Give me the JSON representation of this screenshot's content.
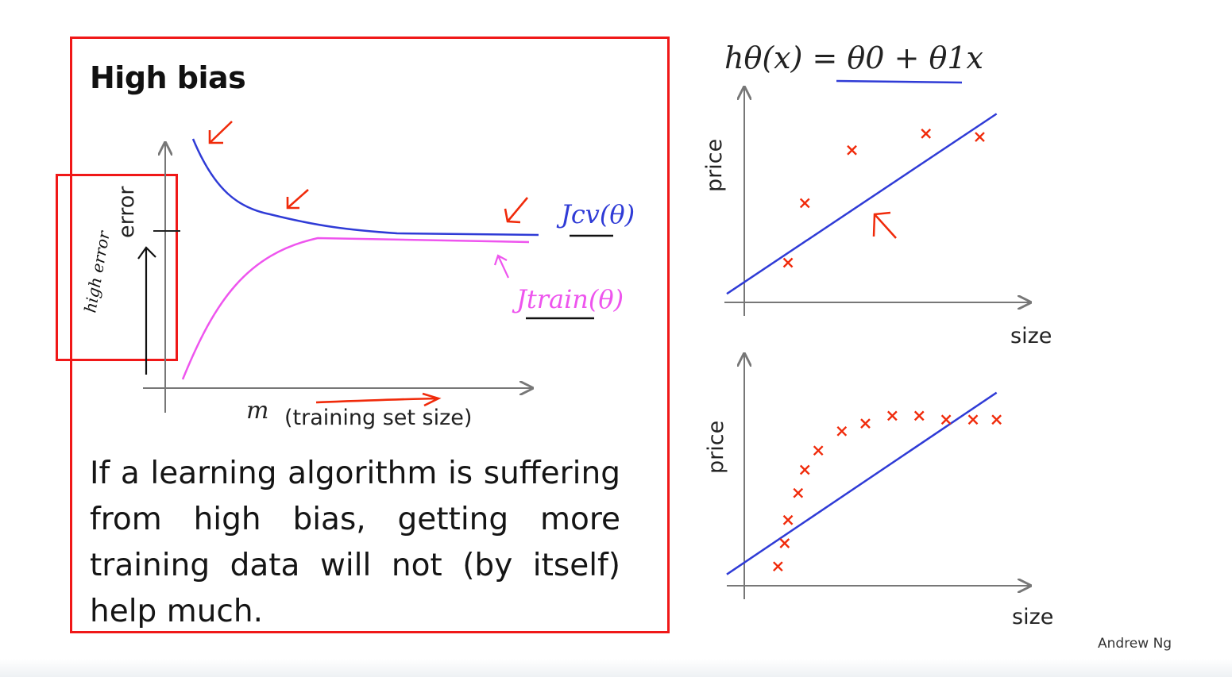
{
  "slide": {
    "title": "High bias",
    "body": "If a learning algorithm is suffering from high bias, getting more training data will not (by itself) help much.",
    "footer": "Andrew Ng"
  },
  "learning_curve": {
    "ylabel": "error",
    "xlabel_symbol": "m",
    "xlabel_text": "(training set size)",
    "cv_label": "Jcv(θ)",
    "train_label": "Jtrain(θ)",
    "annotation": "high error",
    "colors": {
      "cv": "#2f3bd6",
      "train": "#ee55ee",
      "ink": "#f02a0a"
    }
  },
  "hypothesis": "hθ(x) = θ0 + θ1x",
  "chart_data": [
    {
      "type": "scatter",
      "xlabel": "size",
      "ylabel": "price",
      "points": [
        [
          1.3,
          1.2
        ],
        [
          1.8,
          3.0
        ],
        [
          3.2,
          4.6
        ],
        [
          5.4,
          5.1
        ],
        [
          7.0,
          5.0
        ]
      ],
      "fit_line": [
        [
          0,
          0.5
        ],
        [
          7.5,
          5.7
        ]
      ],
      "xlim": [
        0,
        8.5
      ],
      "ylim": [
        0,
        6.5
      ]
    },
    {
      "type": "scatter",
      "xlabel": "size",
      "ylabel": "price",
      "points": [
        [
          1.0,
          0.5
        ],
        [
          1.2,
          1.1
        ],
        [
          1.3,
          1.7
        ],
        [
          1.6,
          2.4
        ],
        [
          1.8,
          3.0
        ],
        [
          2.2,
          3.5
        ],
        [
          2.9,
          4.0
        ],
        [
          3.6,
          4.2
        ],
        [
          4.4,
          4.4
        ],
        [
          5.2,
          4.4
        ],
        [
          6.0,
          4.3
        ],
        [
          6.8,
          4.3
        ],
        [
          7.5,
          4.3
        ]
      ],
      "fit_line": [
        [
          0,
          0.5
        ],
        [
          7.5,
          5.0
        ]
      ],
      "xlim": [
        0,
        8.5
      ],
      "ylim": [
        0,
        6.0
      ]
    }
  ]
}
